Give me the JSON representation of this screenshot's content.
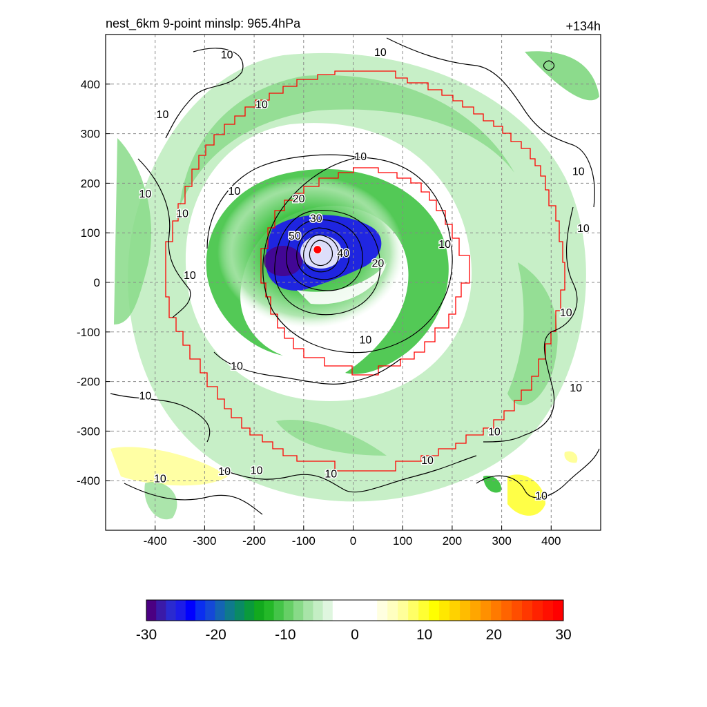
{
  "chart_data": {
    "type": "heatmap",
    "title": "nest_6km  9-point minslp: 965.4hPa",
    "time_label": "+134h",
    "x_ticks": [
      -400,
      -300,
      -200,
      -100,
      0,
      100,
      200,
      300,
      400
    ],
    "y_ticks": [
      400,
      300,
      200,
      100,
      0,
      -100,
      -200,
      -300,
      -400
    ],
    "xlim": [
      -500,
      500
    ],
    "ylim": [
      -500,
      500
    ],
    "grid": true,
    "colorbar": {
      "ticks": [
        -30,
        -20,
        -10,
        0,
        10,
        20,
        30
      ],
      "range": [
        -30,
        30
      ],
      "colors_low": [
        "#4b0082",
        "#3a1aa8",
        "#2a2ad0",
        "#1c1ce8",
        "#0000ff",
        "#0a2ef0",
        "#1448d8",
        "#1464b4",
        "#0f7a8c",
        "#0a8a64",
        "#0a9a3c",
        "#12a91e",
        "#24b828",
        "#44c448",
        "#66cf66",
        "#88da88",
        "#a8e4a8",
        "#c4eec4",
        "#dff6df"
      ],
      "colors_high": [
        "#ffffe0",
        "#ffffc0",
        "#ffff9a",
        "#ffff66",
        "#ffff33",
        "#ffff00",
        "#ffe800",
        "#ffd200",
        "#ffbc00",
        "#ffa600",
        "#ff9000",
        "#ff7a00",
        "#ff6400",
        "#ff4e00",
        "#ff3800",
        "#ff2200",
        "#ff1000",
        "#ff0000"
      ]
    },
    "contour_levels": [
      10,
      20,
      30,
      40,
      50
    ],
    "contour_labels": [
      {
        "text": "10",
        "x": -255,
        "y": 460
      },
      {
        "text": "10",
        "x": 55,
        "y": 465
      },
      {
        "text": "10",
        "x": -185,
        "y": 360
      },
      {
        "text": "10",
        "x": -385,
        "y": 340
      },
      {
        "text": "10",
        "x": 15,
        "y": 255
      },
      {
        "text": "10",
        "x": -240,
        "y": 185
      },
      {
        "text": "10",
        "x": -420,
        "y": 180
      },
      {
        "text": "10",
        "x": -345,
        "y": 140
      },
      {
        "text": "10",
        "x": 455,
        "y": 225
      },
      {
        "text": "10",
        "x": 465,
        "y": 110
      },
      {
        "text": "10",
        "x": 185,
        "y": 78
      },
      {
        "text": "10",
        "x": -330,
        "y": 15
      },
      {
        "text": "10",
        "x": 430,
        "y": -60
      },
      {
        "text": "10",
        "x": 25,
        "y": -115
      },
      {
        "text": "10",
        "x": -235,
        "y": -168
      },
      {
        "text": "10",
        "x": 450,
        "y": -212
      },
      {
        "text": "10",
        "x": -420,
        "y": -228
      },
      {
        "text": "10",
        "x": 285,
        "y": -300
      },
      {
        "text": "10",
        "x": 150,
        "y": -358
      },
      {
        "text": "10",
        "x": -260,
        "y": -380
      },
      {
        "text": "10",
        "x": -195,
        "y": -378
      },
      {
        "text": "10",
        "x": -45,
        "y": -385
      },
      {
        "text": "10",
        "x": -390,
        "y": -395
      },
      {
        "text": "10",
        "x": 380,
        "y": -430
      },
      {
        "text": "20",
        "x": -110,
        "y": 170
      },
      {
        "text": "20",
        "x": 50,
        "y": 40
      },
      {
        "text": "30",
        "x": -75,
        "y": 130
      },
      {
        "text": "40",
        "x": -20,
        "y": 60
      },
      {
        "text": "50",
        "x": -118,
        "y": 95
      }
    ],
    "storm_center": {
      "x": -72,
      "y": 66
    },
    "inner_box_halfwidth_note": "",
    "colors": {
      "outer_boundary": "#ff0000",
      "center_marker": "#ff0000",
      "contour": "#000000",
      "grid": "#888888"
    }
  }
}
